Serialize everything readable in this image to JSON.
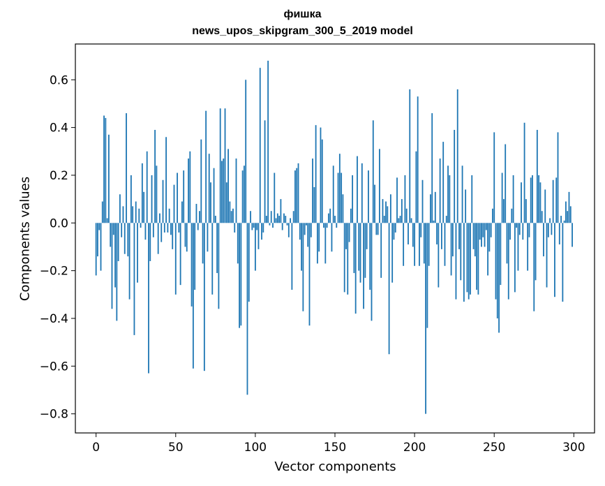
{
  "chart_data": {
    "type": "bar",
    "title": "фишка",
    "subtitle": "news_upos_skipgram_300_5_2019 model",
    "xlabel": "Vector components",
    "ylabel": "Components values",
    "xlim": [
      -13,
      313
    ],
    "ylim": [
      -0.88,
      0.75
    ],
    "xticks": [
      0,
      50,
      100,
      150,
      200,
      250,
      300
    ],
    "yticks": [
      -0.8,
      -0.6,
      -0.4,
      -0.2,
      0.0,
      0.2,
      0.4,
      0.6
    ],
    "ytick_labels": [
      "−0.8",
      "−0.6",
      "−0.4",
      "−0.2",
      "0.0",
      "0.2",
      "0.4",
      "0.6"
    ],
    "grid": false,
    "bar_color": "#1f77b4",
    "x": [
      0,
      1,
      2,
      3,
      4,
      5,
      6,
      7,
      8,
      9,
      10,
      11,
      12,
      13,
      14,
      15,
      16,
      17,
      18,
      19,
      20,
      21,
      22,
      23,
      24,
      25,
      26,
      27,
      28,
      29,
      30,
      31,
      32,
      33,
      34,
      35,
      36,
      37,
      38,
      39,
      40,
      41,
      42,
      43,
      44,
      45,
      46,
      47,
      48,
      49,
      50,
      51,
      52,
      53,
      54,
      55,
      56,
      57,
      58,
      59,
      60,
      61,
      62,
      63,
      64,
      65,
      66,
      67,
      68,
      69,
      70,
      71,
      72,
      73,
      74,
      75,
      76,
      77,
      78,
      79,
      80,
      81,
      82,
      83,
      84,
      85,
      86,
      87,
      88,
      89,
      90,
      91,
      92,
      93,
      94,
      95,
      96,
      97,
      98,
      99,
      100,
      101,
      102,
      103,
      104,
      105,
      106,
      107,
      108,
      109,
      110,
      111,
      112,
      113,
      114,
      115,
      116,
      117,
      118,
      119,
      120,
      121,
      122,
      123,
      124,
      125,
      126,
      127,
      128,
      129,
      130,
      131,
      132,
      133,
      134,
      135,
      136,
      137,
      138,
      139,
      140,
      141,
      142,
      143,
      144,
      145,
      146,
      147,
      148,
      149,
      150,
      151,
      152,
      153,
      154,
      155,
      156,
      157,
      158,
      159,
      160,
      161,
      162,
      163,
      164,
      165,
      166,
      167,
      168,
      169,
      170,
      171,
      172,
      173,
      174,
      175,
      176,
      177,
      178,
      179,
      180,
      181,
      182,
      183,
      184,
      185,
      186,
      187,
      188,
      189,
      190,
      191,
      192,
      193,
      194,
      195,
      196,
      197,
      198,
      199,
      200,
      201,
      202,
      203,
      204,
      205,
      206,
      207,
      208,
      209,
      210,
      211,
      212,
      213,
      214,
      215,
      216,
      217,
      218,
      219,
      220,
      221,
      222,
      223,
      224,
      225,
      226,
      227,
      228,
      229,
      230,
      231,
      232,
      233,
      234,
      235,
      236,
      237,
      238,
      239,
      240,
      241,
      242,
      243,
      244,
      245,
      246,
      247,
      248,
      249,
      250,
      251,
      252,
      253,
      254,
      255,
      256,
      257,
      258,
      259,
      260,
      261,
      262,
      263,
      264,
      265,
      266,
      267,
      268,
      269,
      270,
      271,
      272,
      273,
      274,
      275,
      276,
      277,
      278,
      279,
      280,
      281,
      282,
      283,
      284,
      285,
      286,
      287,
      288,
      289,
      290,
      291,
      292,
      293,
      294,
      295,
      296,
      297,
      298,
      299
    ],
    "values": [
      -0.22,
      -0.14,
      -0.03,
      -0.2,
      0.09,
      0.45,
      0.44,
      0.02,
      0.37,
      -0.1,
      -0.36,
      -0.05,
      -0.27,
      -0.41,
      -0.16,
      0.12,
      -0.06,
      0.07,
      -0.13,
      0.46,
      -0.14,
      -0.32,
      0.2,
      0.07,
      -0.47,
      0.09,
      -0.25,
      0.06,
      -0.02,
      0.25,
      0.13,
      -0.07,
      0.3,
      -0.63,
      -0.16,
      0.2,
      -0.06,
      0.39,
      0.24,
      -0.13,
      0.04,
      -0.08,
      0.18,
      -0.04,
      0.36,
      -0.04,
      0.06,
      -0.05,
      -0.11,
      0.16,
      -0.3,
      0.21,
      -0.04,
      -0.26,
      0.09,
      0.22,
      -0.1,
      -0.12,
      0.27,
      0.3,
      -0.35,
      -0.61,
      -0.28,
      0.08,
      -0.03,
      0.05,
      0.35,
      -0.17,
      -0.62,
      0.47,
      -0.12,
      0.29,
      0.17,
      -0.3,
      0.23,
      0.03,
      -0.21,
      -0.36,
      0.48,
      0.26,
      0.27,
      0.48,
      0.17,
      0.31,
      0.09,
      0.05,
      0.06,
      -0.04,
      0.27,
      -0.17,
      -0.44,
      -0.43,
      0.22,
      0.24,
      0.6,
      -0.72,
      -0.33,
      0.05,
      -0.03,
      -0.02,
      -0.2,
      -0.03,
      -0.11,
      0.65,
      -0.07,
      -0.04,
      0.43,
      0.03,
      0.68,
      -0.01,
      0.05,
      -0.02,
      0.21,
      0.02,
      0.04,
      0.03,
      0.1,
      -0.03,
      0.04,
      0.03,
      -0.01,
      -0.06,
      0.02,
      -0.28,
      0.05,
      0.22,
      0.23,
      0.25,
      -0.07,
      -0.2,
      -0.37,
      -0.05,
      -0.01,
      -0.1,
      -0.43,
      -0.06,
      0.27,
      0.15,
      0.41,
      -0.17,
      -0.12,
      0.4,
      0.35,
      -0.02,
      -0.17,
      -0.02,
      0.04,
      0.06,
      -0.12,
      0.24,
      0.03,
      -0.02,
      0.21,
      0.29,
      0.21,
      0.12,
      -0.29,
      -0.11,
      -0.3,
      -0.08,
      0.06,
      0.2,
      -0.21,
      -0.38,
      0.28,
      -0.2,
      -0.25,
      0.25,
      -0.36,
      -0.23,
      -0.11,
      0.22,
      -0.28,
      -0.41,
      0.43,
      0.16,
      -0.05,
      -0.05,
      0.31,
      -0.23,
      0.1,
      0.03,
      0.09,
      0.07,
      -0.55,
      0.12,
      -0.25,
      -0.07,
      -0.04,
      0.19,
      0.02,
      0.03,
      0.1,
      -0.18,
      0.2,
      0.06,
      -0.09,
      0.56,
      0.02,
      -0.1,
      -0.18,
      0.3,
      0.53,
      -0.18,
      -0.06,
      0.18,
      -0.17,
      -0.8,
      -0.44,
      -0.18,
      0.12,
      0.46,
      0.01,
      0.13,
      -0.09,
      -0.27,
      0.27,
      -0.11,
      0.34,
      -0.18,
      0.03,
      0.24,
      0.2,
      -0.22,
      -0.14,
      0.39,
      -0.32,
      0.56,
      -0.11,
      -0.24,
      0.24,
      -0.33,
      0.14,
      -0.29,
      -0.32,
      -0.3,
      0.2,
      -0.11,
      -0.14,
      -0.28,
      -0.3,
      -0.07,
      -0.1,
      -0.06,
      -0.1,
      -0.03,
      -0.22,
      -0.12,
      -0.06,
      0.06,
      0.38,
      -0.32,
      -0.4,
      -0.46,
      -0.26,
      0.21,
      0.1,
      0.33,
      -0.17,
      -0.32,
      -0.07,
      0.06,
      0.2,
      -0.29,
      -0.02,
      -0.2,
      -0.05,
      0.17,
      -0.07,
      0.42,
      0.1,
      -0.2,
      -0.06,
      0.19,
      0.2,
      -0.37,
      -0.24,
      0.39,
      0.2,
      0.17,
      0.05,
      -0.14,
      0.14,
      -0.27,
      -0.06,
      0.02,
      -0.05,
      0.18,
      -0.31,
      0.19,
      0.38,
      -0.09,
      0.03,
      -0.33,
      0.01,
      0.09,
      0.05,
      0.13,
      0.07,
      -0.1
    ]
  }
}
